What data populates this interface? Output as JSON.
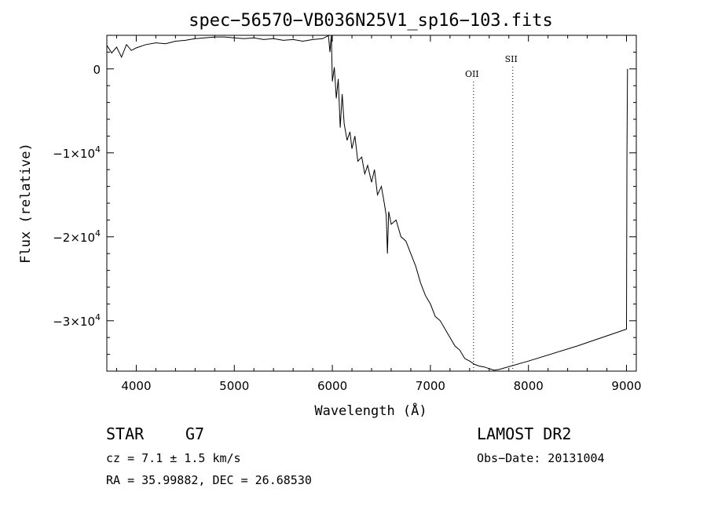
{
  "chart_data": {
    "type": "line",
    "title": "spec−56570−VB036N25V1_sp16−103.fits",
    "xlabel": "Wavelength (Å)",
    "ylabel": "Flux (relative)",
    "xlim": [
      3700,
      9100
    ],
    "ylim": [
      -36000,
      4000
    ],
    "xticks": [
      4000,
      5000,
      6000,
      7000,
      8000,
      9000
    ],
    "xtick_labels": [
      "4000",
      "5000",
      "6000",
      "7000",
      "8000",
      "9000"
    ],
    "yticks": [
      0,
      -10000,
      -20000,
      -30000
    ],
    "ytick_labels": [
      {
        "mantissa": "0",
        "exp": ""
      },
      {
        "mantissa": "−1×10",
        "exp": "4"
      },
      {
        "mantissa": "−2×10",
        "exp": "4"
      },
      {
        "mantissa": "−3×10",
        "exp": "4"
      }
    ],
    "grid": false,
    "line_color": "#000000",
    "series": [
      {
        "x": [
          3700,
          3750,
          3800,
          3850,
          3900,
          3950,
          4000,
          4100,
          4200,
          4300,
          4400,
          4500,
          4600,
          4700,
          4800,
          4900,
          5000,
          5100,
          5200,
          5300,
          5400,
          5500,
          5600,
          5700,
          5800,
          5900,
          5950,
          5960,
          5975,
          5990,
          6000,
          6020,
          6040,
          6060,
          6080,
          6100,
          6120,
          6150,
          6180,
          6200,
          6230,
          6260,
          6300,
          6330,
          6360,
          6400,
          6430,
          6460,
          6500,
          6530,
          6550,
          6562,
          6575,
          6600,
          6650,
          6700,
          6750,
          6800,
          6850,
          6900,
          6950,
          7000,
          7050,
          7100,
          7150,
          7200,
          7250,
          7300,
          7350,
          7400,
          7450,
          7500,
          7550,
          7600,
          7650,
          7700,
          8000,
          8500,
          9000,
          9005,
          9010
        ],
        "y": [
          2800,
          1900,
          2600,
          1400,
          2900,
          2200,
          2500,
          2900,
          3100,
          3000,
          3300,
          3400,
          3600,
          3700,
          3800,
          3800,
          3700,
          3600,
          3700,
          3500,
          3600,
          3400,
          3500,
          3300,
          3500,
          3600,
          3900,
          5000,
          2000,
          4000,
          -1500,
          200,
          -3500,
          -1200,
          -7000,
          -3000,
          -6500,
          -8500,
          -7500,
          -9500,
          -8000,
          -11000,
          -10500,
          -12500,
          -11500,
          -13500,
          -12000,
          -15000,
          -14000,
          -16000,
          -17500,
          -22000,
          -17000,
          -18500,
          -18000,
          -20000,
          -20500,
          -22000,
          -23500,
          -25500,
          -27000,
          -28000,
          -29500,
          -30000,
          -31000,
          -32000,
          -33000,
          -33500,
          -34500,
          -34800,
          -35200,
          -35400,
          -35500,
          -35700,
          -35900,
          -35800,
          -34800,
          -33000,
          -31000,
          -10000,
          0
        ]
      }
    ],
    "annotations": [
      {
        "label": "OII",
        "x": 7440
      },
      {
        "label": "SII",
        "x": 7840
      }
    ]
  },
  "info": {
    "class_label": "STAR",
    "subclass": "G7",
    "cz": "cz = 7.1 ± 1.5 km/s",
    "radec": "RA =  35.99882, DEC =  26.68530",
    "survey": "LAMOST DR2",
    "obsdate": "Obs−Date: 20131004"
  }
}
